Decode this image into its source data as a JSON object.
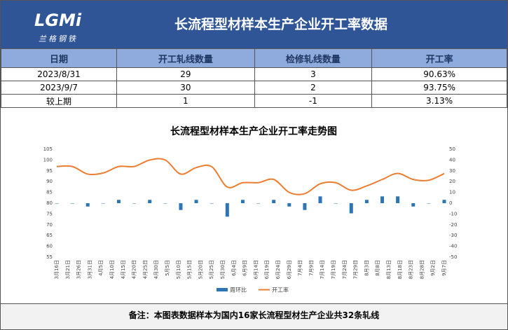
{
  "header": {
    "logo_text": "LGMi",
    "logo_sub": "兰格钢铁",
    "title": "长流程型材样本生产企业开工率数据"
  },
  "table": {
    "columns": [
      "日期",
      "开工轧线数量",
      "检修轧线数量",
      "开工率"
    ],
    "rows": [
      [
        "2023/8/31",
        "29",
        "3",
        "90.63%"
      ],
      [
        "2023/9/7",
        "30",
        "2",
        "93.75%"
      ],
      [
        "较上期",
        "1",
        "-1",
        "3.13%"
      ]
    ]
  },
  "chart_data": {
    "type": "combo",
    "title": "长流程型材样本生产企业开工率走势图",
    "xtick_labels": [
      "3月16日",
      "3月21日",
      "3月26日",
      "3月31日",
      "4月5日",
      "4月10日",
      "4月15日",
      "4月20日",
      "4月25日",
      "4月30日",
      "5月5日",
      "5月10日",
      "5月15日",
      "5月20日",
      "5月25日",
      "5月30日",
      "6月4日",
      "6月9日",
      "6月14日",
      "6月19日",
      "6月24日",
      "6月29日",
      "7月4日",
      "7月9日",
      "7月14日",
      "7月19日",
      "7月24日",
      "7月29日",
      "8月3日",
      "8月8日",
      "8月13日",
      "8月18日",
      "8月23日",
      "8月28日",
      "9月2日",
      "9月7日"
    ],
    "series": [
      {
        "name": "周环比",
        "type": "bar",
        "axis": "y2",
        "color": "#2e75b6",
        "values": [
          0,
          0,
          -3.1,
          0,
          3.1,
          0,
          3.1,
          0,
          -6.3,
          3.1,
          0,
          -12.5,
          3.1,
          0,
          3.1,
          -3.1,
          -6.3,
          6.3,
          0,
          -9.4,
          3.1,
          6.3,
          6.3,
          -3.1,
          0,
          3.13
        ]
      },
      {
        "name": "开工率",
        "type": "line",
        "color": "#ed7d31",
        "values": [
          97,
          97,
          93.5,
          94,
          97,
          97,
          100,
          100,
          93.5,
          96.5,
          96.9,
          87.5,
          89.5,
          89.5,
          91,
          85,
          84.4,
          89,
          89.5,
          86,
          88,
          91,
          93.8,
          91,
          90.63,
          93.75
        ]
      }
    ],
    "ylim": [
      55,
      105
    ],
    "yticks": [
      55,
      60,
      65,
      70,
      75,
      80,
      85,
      90,
      95,
      100,
      105
    ],
    "y2lim": [
      -50,
      50
    ],
    "y2ticks": [
      -50,
      -40,
      -30,
      -20,
      -10,
      0,
      10,
      20,
      30,
      40,
      50
    ],
    "legend": "bottom"
  },
  "note": "备注：本图表数据样本为国内16家长流程型材生产企业共32条轧线"
}
